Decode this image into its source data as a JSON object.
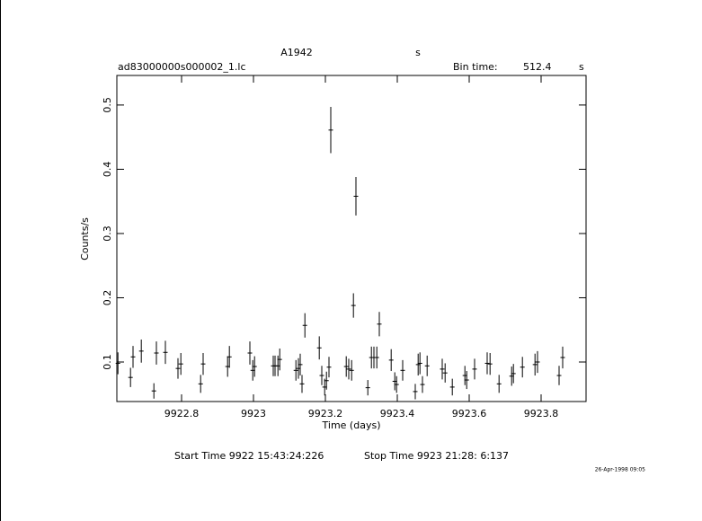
{
  "chart_data": {
    "type": "errorbar",
    "title": "A1942",
    "title_unit": "s",
    "subtitle": "ad83000000s000002_1.lc",
    "bin_time_label": "Bin time:",
    "bin_time": 512.4,
    "bin_time_unit": "s",
    "xlabel": "Time (days)",
    "ylabel": "Counts/s",
    "start_time": "Start Time  9922 15:43:24:226",
    "stop_time": "Stop Time  9923 21:28: 6:137",
    "date_stamp": "26-Apr-1998 09:05",
    "xlim": [
      9922.62,
      9923.925
    ],
    "ylim": [
      0.0385,
      0.546
    ],
    "xticks": [
      9922.8,
      9923,
      9923.2,
      9923.4,
      9923.6,
      9923.8
    ],
    "yticks": [
      0.1,
      0.2,
      0.3,
      0.4,
      0.5
    ],
    "color": "#000000",
    "series": [
      {
        "x": [
          9922.623,
          9922.658,
          9922.665,
          9922.688,
          9922.723,
          9922.73,
          9922.755,
          9922.79,
          9922.798,
          9922.853,
          9922.86,
          9922.928,
          9922.933,
          9922.99,
          9922.998,
          9923.003,
          9923.055,
          9923.06,
          9923.068,
          9923.073,
          9923.118,
          9923.125,
          9923.13,
          9923.135,
          9923.143,
          9923.183,
          9923.19,
          9923.198,
          9923.203,
          9923.21,
          9923.215,
          9923.258,
          9923.265,
          9923.273,
          9923.278,
          9923.285,
          9923.318,
          9923.328,
          9923.335,
          9923.343,
          9923.35,
          9923.383,
          9923.393,
          9923.398,
          9923.415,
          9923.45,
          9923.458,
          9923.463,
          9923.47,
          9923.483,
          9923.525,
          9923.533,
          9923.553,
          9923.588,
          9923.593,
          9923.615,
          9923.65,
          9923.658,
          9923.683,
          9923.718,
          9923.723,
          9923.748,
          9923.783,
          9923.79,
          9923.85,
          9923.86
        ],
        "values": [
          0.098,
          0.076,
          0.108,
          0.117,
          0.055,
          0.114,
          0.115,
          0.09,
          0.097,
          0.066,
          0.097,
          0.093,
          0.108,
          0.114,
          0.087,
          0.093,
          0.094,
          0.094,
          0.094,
          0.104,
          0.087,
          0.09,
          0.096,
          0.066,
          0.157,
          0.122,
          0.079,
          0.061,
          0.071,
          0.092,
          0.461,
          0.093,
          0.089,
          0.087,
          0.188,
          0.358,
          0.06,
          0.107,
          0.107,
          0.107,
          0.159,
          0.103,
          0.07,
          0.065,
          0.087,
          0.054,
          0.096,
          0.098,
          0.065,
          0.094,
          0.089,
          0.083,
          0.061,
          0.079,
          0.072,
          0.089,
          0.098,
          0.097,
          0.066,
          0.078,
          0.082,
          0.092,
          0.096,
          0.1,
          0.079,
          0.107
        ],
        "errors": [
          0.017,
          0.015,
          0.017,
          0.018,
          0.012,
          0.018,
          0.018,
          0.016,
          0.017,
          0.014,
          0.017,
          0.016,
          0.017,
          0.018,
          0.016,
          0.016,
          0.016,
          0.016,
          0.016,
          0.017,
          0.016,
          0.016,
          0.017,
          0.014,
          0.019,
          0.018,
          0.015,
          0.013,
          0.014,
          0.016,
          0.036,
          0.016,
          0.016,
          0.016,
          0.019,
          0.03,
          0.012,
          0.017,
          0.017,
          0.017,
          0.019,
          0.017,
          0.014,
          0.013,
          0.016,
          0.012,
          0.017,
          0.017,
          0.013,
          0.016,
          0.016,
          0.015,
          0.013,
          0.015,
          0.014,
          0.016,
          0.017,
          0.017,
          0.014,
          0.015,
          0.015,
          0.016,
          0.017,
          0.017,
          0.015,
          0.017
        ]
      }
    ]
  }
}
